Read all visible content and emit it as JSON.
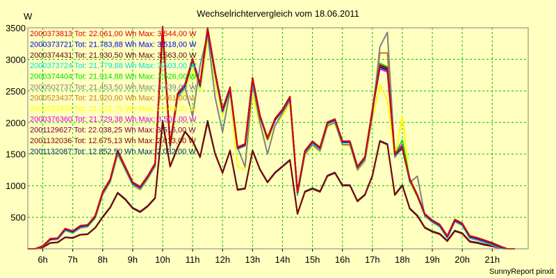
{
  "chart_data": {
    "type": "line",
    "title": "Wechselrichtervergleich vom 18.06.2011",
    "ylabel": "W",
    "ylim": [
      0,
      3500
    ],
    "xlim": [
      5.5,
      22.2
    ],
    "grid": true,
    "legend_position": "top-left",
    "footer": "SunnyReport pinxit",
    "y_ticks": [
      "500",
      "1000",
      "1500",
      "2000",
      "2500",
      "3000",
      "3500"
    ],
    "x_ticks": [
      "6h",
      "7h",
      "8h",
      "9h",
      "10h",
      "11h",
      "12h",
      "13h",
      "14h",
      "15h",
      "16h",
      "17h",
      "18h",
      "19h",
      "20h",
      "21h"
    ],
    "x": [
      5.5,
      5.75,
      6.0,
      6.25,
      6.5,
      6.75,
      7.0,
      7.25,
      7.5,
      7.75,
      8.0,
      8.25,
      8.5,
      8.75,
      9.0,
      9.25,
      9.5,
      9.75,
      10.0,
      10.25,
      10.5,
      10.75,
      11.0,
      11.25,
      11.5,
      11.75,
      12.0,
      12.25,
      12.5,
      12.75,
      13.0,
      13.25,
      13.5,
      13.75,
      14.0,
      14.25,
      14.5,
      14.75,
      15.0,
      15.25,
      15.5,
      15.75,
      16.0,
      16.25,
      16.5,
      16.75,
      17.0,
      17.25,
      17.5,
      17.75,
      18.0,
      18.25,
      18.5,
      18.75,
      19.0,
      19.25,
      19.5,
      19.75,
      20.0,
      20.25,
      20.5,
      20.75,
      21.0,
      21.25,
      21.5,
      21.75
    ],
    "series": [
      {
        "name": "2000373813 Tot: 22.061,00 Wh Max: 3.544,00 W",
        "color": "#e00000",
        "values": [
          0,
          0,
          40,
          160,
          170,
          320,
          280,
          360,
          380,
          520,
          900,
          1100,
          1550,
          1300,
          1050,
          980,
          1150,
          1350,
          3500,
          1650,
          2450,
          2600,
          3000,
          2600,
          3480,
          2800,
          2200,
          2550,
          1600,
          1650,
          2700,
          2100,
          1750,
          2050,
          2200,
          2400,
          900,
          1550,
          1700,
          1600,
          2000,
          2050,
          1700,
          1700,
          1300,
          1450,
          2200,
          2900,
          2850,
          1500,
          1600,
          1100,
          850,
          550,
          450,
          380,
          200,
          460,
          400,
          200,
          170,
          130,
          90,
          40,
          0,
          0
        ]
      },
      {
        "name": "2000373721 Tot: 21.783,88 Wh Max: 3.518,00 W",
        "color": "#0000e0",
        "values": [
          0,
          0,
          40,
          150,
          165,
          310,
          270,
          350,
          370,
          510,
          890,
          1090,
          1540,
          1290,
          1040,
          970,
          1140,
          1340,
          3480,
          1640,
          2440,
          2580,
          2980,
          2580,
          3460,
          2780,
          2180,
          2530,
          1590,
          1640,
          2680,
          2090,
          1740,
          2040,
          2190,
          2390,
          890,
          1540,
          1690,
          1590,
          1990,
          2040,
          1690,
          1690,
          1290,
          1440,
          2190,
          2880,
          2830,
          1490,
          1590,
          1090,
          840,
          540,
          440,
          370,
          190,
          450,
          390,
          190,
          160,
          120,
          80,
          30,
          0,
          0
        ]
      },
      {
        "name": "2000374431 Tot: 21.930,50 Wh Max: 3.563,00 W",
        "color": "#600000",
        "values": [
          0,
          0,
          45,
          160,
          170,
          320,
          280,
          365,
          380,
          525,
          905,
          1105,
          1555,
          1305,
          1055,
          985,
          1155,
          1355,
          3520,
          1660,
          2460,
          2610,
          3010,
          2610,
          3500,
          2810,
          2210,
          2560,
          1610,
          1660,
          2710,
          2110,
          1760,
          2060,
          2210,
          2410,
          905,
          1555,
          1705,
          1605,
          2005,
          2055,
          1705,
          1705,
          1305,
          1455,
          2205,
          2910,
          2860,
          1505,
          1605,
          1105,
          855,
          555,
          455,
          385,
          205,
          465,
          405,
          205,
          175,
          135,
          95,
          45,
          0,
          0
        ]
      },
      {
        "name": "2000373724 Tot: 21.779,88 Wh Max: 3.503,00 W",
        "color": "#00e0e0",
        "values": [
          0,
          0,
          40,
          150,
          160,
          300,
          260,
          340,
          360,
          500,
          880,
          1080,
          1520,
          1280,
          1030,
          960,
          1130,
          1330,
          3470,
          1630,
          2420,
          2560,
          2960,
          2560,
          3440,
          2760,
          2160,
          2510,
          1580,
          1630,
          2660,
          2080,
          1730,
          2030,
          2180,
          2380,
          880,
          1530,
          1680,
          1580,
          1980,
          2030,
          1680,
          1680,
          1280,
          1430,
          2180,
          2870,
          2820,
          1480,
          1580,
          1080,
          830,
          530,
          430,
          360,
          180,
          440,
          380,
          180,
          150,
          110,
          70,
          20,
          0,
          0
        ]
      },
      {
        "name": "2000374404 Tot: 21.914,88 Wh Max: 3.526,00 W",
        "color": "#00e000",
        "values": [
          0,
          0,
          45,
          155,
          165,
          315,
          275,
          355,
          375,
          515,
          895,
          1095,
          1545,
          1295,
          1045,
          975,
          1145,
          1345,
          3500,
          1645,
          2445,
          2590,
          2990,
          2590,
          3480,
          2790,
          2190,
          2540,
          1595,
          1645,
          2690,
          2095,
          1745,
          2045,
          2195,
          2395,
          895,
          1545,
          1695,
          1595,
          1995,
          2045,
          1695,
          1695,
          1295,
          1445,
          2195,
          2940,
          2880,
          1495,
          1720,
          1095,
          845,
          545,
          445,
          375,
          195,
          455,
          395,
          195,
          165,
          125,
          85,
          35,
          0,
          0
        ]
      },
      {
        "name": "2000502737 Tot: 21.453,50 Wh Max: 3.439,00 W",
        "color": "#808080",
        "values": [
          0,
          0,
          35,
          140,
          150,
          290,
          250,
          330,
          350,
          490,
          860,
          1060,
          1500,
          1260,
          1010,
          940,
          1110,
          1310,
          3400,
          1600,
          2400,
          2550,
          2100,
          2900,
          3400,
          2400,
          1850,
          2500,
          1600,
          1300,
          2600,
          2000,
          1500,
          1950,
          2150,
          2350,
          850,
          1500,
          1650,
          1550,
          1950,
          2000,
          1650,
          1650,
          1250,
          1400,
          2100,
          3200,
          3430,
          1450,
          1600,
          1050,
          1150,
          520,
          420,
          350,
          170,
          430,
          370,
          170,
          140,
          100,
          60,
          10,
          0,
          0
        ]
      },
      {
        "name": "2000523437 Tot: 21.920,00 Wh Max: 3.461,00 W",
        "color": "#c08020",
        "values": [
          0,
          0,
          40,
          150,
          165,
          310,
          270,
          350,
          370,
          510,
          890,
          1090,
          1540,
          1290,
          1040,
          970,
          1140,
          1340,
          3450,
          1640,
          2430,
          2580,
          2960,
          2580,
          3440,
          2770,
          2180,
          2530,
          1590,
          1640,
          2680,
          2090,
          1740,
          2040,
          2190,
          2390,
          890,
          1540,
          1690,
          1590,
          1990,
          2040,
          1690,
          1690,
          1290,
          1440,
          2190,
          3100,
          3100,
          1490,
          1590,
          1090,
          840,
          540,
          440,
          370,
          190,
          450,
          390,
          190,
          160,
          120,
          80,
          30,
          0,
          0
        ]
      },
      {
        "name": "2000523439 Tot: 21.215,75 Wh Max: 3.449,00 W",
        "color": "#ffff00",
        "values": [
          0,
          0,
          35,
          140,
          150,
          290,
          250,
          330,
          350,
          480,
          850,
          1050,
          1480,
          1250,
          1000,
          930,
          1100,
          1300,
          3300,
          1580,
          2350,
          2500,
          2850,
          2500,
          3300,
          2650,
          2100,
          2450,
          1300,
          1250,
          2450,
          1950,
          1700,
          1950,
          2100,
          2300,
          850,
          1480,
          1630,
          1530,
          1930,
          1980,
          1630,
          1630,
          1230,
          1380,
          2050,
          2600,
          2350,
          1450,
          2100,
          1030,
          820,
          520,
          420,
          350,
          170,
          430,
          370,
          170,
          140,
          100,
          60,
          10,
          0,
          0
        ]
      },
      {
        "name": "2000376360 Tot: 21.729,38 Wh Max: 3.501,00 W",
        "color": "#e000e0",
        "values": [
          0,
          0,
          40,
          155,
          165,
          315,
          275,
          355,
          375,
          515,
          895,
          1095,
          1545,
          1295,
          1045,
          975,
          1145,
          1345,
          3490,
          1650,
          2450,
          2600,
          3000,
          2600,
          3470,
          2790,
          2190,
          2540,
          1600,
          1650,
          2690,
          2100,
          1750,
          2050,
          2200,
          2400,
          895,
          1545,
          1695,
          1595,
          1995,
          2045,
          1695,
          1695,
          1295,
          1445,
          2195,
          2850,
          2800,
          1495,
          1650,
          1095,
          845,
          545,
          445,
          375,
          195,
          455,
          395,
          195,
          165,
          125,
          85,
          35,
          0,
          0
        ]
      },
      {
        "name": "2001129627 Tot: 22.038,25 Wh Max: 3.516,00 W",
        "color": "#800040",
        "values": [
          0,
          0,
          45,
          160,
          170,
          320,
          280,
          360,
          380,
          520,
          900,
          1100,
          1550,
          1300,
          1050,
          980,
          1150,
          1350,
          3510,
          1655,
          2455,
          2605,
          3005,
          2605,
          3490,
          2800,
          2200,
          2550,
          1605,
          1655,
          2700,
          2105,
          1755,
          2055,
          2205,
          2405,
          900,
          1550,
          1700,
          1600,
          2000,
          2050,
          1700,
          1700,
          1300,
          1450,
          2200,
          2880,
          2830,
          1500,
          1610,
          1100,
          850,
          550,
          450,
          380,
          200,
          460,
          400,
          200,
          170,
          130,
          90,
          40,
          0,
          0
        ]
      },
      {
        "name": "2001132036 Tot: 12.675,13 Wh Max: 2.013,00 W",
        "color": "#800000",
        "values": [
          0,
          0,
          20,
          90,
          100,
          180,
          170,
          220,
          230,
          330,
          500,
          650,
          880,
          780,
          640,
          580,
          670,
          800,
          2000,
          1300,
          1600,
          1850,
          1700,
          1450,
          2000,
          1500,
          1200,
          1550,
          930,
          950,
          1550,
          1250,
          1050,
          1200,
          1300,
          1400,
          550,
          900,
          950,
          900,
          1150,
          1200,
          1000,
          1000,
          750,
          850,
          1150,
          1700,
          1650,
          850,
          1000,
          630,
          520,
          330,
          270,
          230,
          120,
          280,
          240,
          110,
          90,
          60,
          40,
          10,
          0,
          0
        ]
      },
      {
        "name": "2001132087 Tot: 12.852,50 Wh Max: 2.032,00 W",
        "color": "#003060",
        "values": [
          0,
          0,
          25,
          95,
          105,
          185,
          175,
          225,
          235,
          335,
          510,
          660,
          890,
          790,
          650,
          590,
          680,
          810,
          2030,
          1310,
          1610,
          1860,
          1710,
          1460,
          2030,
          1510,
          1210,
          1560,
          940,
          960,
          1560,
          1260,
          1060,
          1210,
          1310,
          1410,
          560,
          910,
          960,
          910,
          1160,
          1210,
          1010,
          1010,
          760,
          860,
          1160,
          1710,
          1660,
          860,
          1010,
          640,
          530,
          340,
          280,
          240,
          130,
          290,
          250,
          120,
          100,
          70,
          50,
          15,
          0,
          0
        ]
      }
    ]
  }
}
